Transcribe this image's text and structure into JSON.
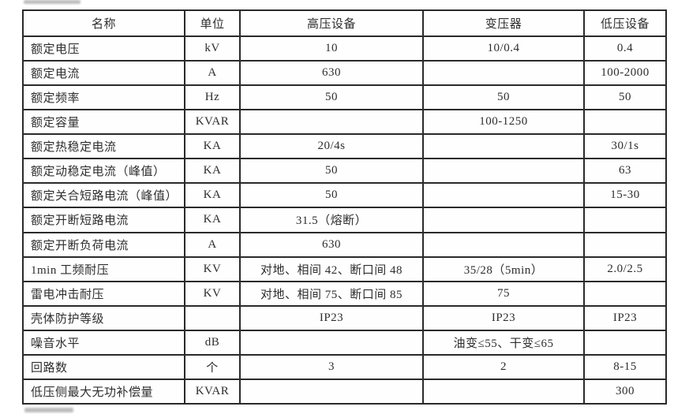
{
  "table": {
    "columns": [
      {
        "key": "name",
        "label": "名称"
      },
      {
        "key": "unit",
        "label": "单位"
      },
      {
        "key": "hv",
        "label": "高压设备"
      },
      {
        "key": "transformer",
        "label": "变压器"
      },
      {
        "key": "lv",
        "label": "低压设备"
      }
    ],
    "rows": [
      {
        "name": "额定电压",
        "unit": "kV",
        "hv": "10",
        "transformer": "10/0.4",
        "lv": "0.4"
      },
      {
        "name": "额定电流",
        "unit": "A",
        "hv": "630",
        "transformer": "",
        "lv": "100-2000"
      },
      {
        "name": "额定频率",
        "unit": "Hz",
        "hv": "50",
        "transformer": "50",
        "lv": "50"
      },
      {
        "name": "额定容量",
        "unit": "KVAR",
        "hv": "",
        "transformer": "100-1250",
        "lv": ""
      },
      {
        "name": "额定热稳定电流",
        "unit": "KA",
        "hv": "20/4s",
        "transformer": "",
        "lv": "30/1s"
      },
      {
        "name": "额定动稳定电流（峰值）",
        "unit": "KA",
        "hv": "50",
        "transformer": "",
        "lv": "63"
      },
      {
        "name": "额定关合短路电流（峰值）",
        "unit": "KA",
        "hv": "50",
        "transformer": "",
        "lv": "15-30"
      },
      {
        "name": "额定开断短路电流",
        "unit": "KA",
        "hv": "31.5（熔断）",
        "transformer": "",
        "lv": ""
      },
      {
        "name": "额定开断负荷电流",
        "unit": "A",
        "hv": "630",
        "transformer": "",
        "lv": ""
      },
      {
        "name": "1min 工频耐压",
        "unit": "KV",
        "hv": "对地、相间 42、断口间 48",
        "transformer": "35/28（5min）",
        "lv": "2.0/2.5"
      },
      {
        "name": "雷电冲击耐压",
        "unit": "KV",
        "hv": "对地、相间 75、断口间 85",
        "transformer": "75",
        "lv": ""
      },
      {
        "name": "壳体防护等级",
        "unit": "",
        "hv": "IP23",
        "transformer": "IP23",
        "lv": "IP23"
      },
      {
        "name": "噪音水平",
        "unit": "dB",
        "hv": "",
        "transformer": "油变≤55、干变≤65",
        "lv": ""
      },
      {
        "name": "回路数",
        "unit": "个",
        "hv": "3",
        "transformer": "2",
        "lv": "8-15"
      },
      {
        "name": "低压侧最大无功补偿量",
        "unit": "KVAR",
        "hv": "",
        "transformer": "",
        "lv": "300"
      }
    ]
  }
}
